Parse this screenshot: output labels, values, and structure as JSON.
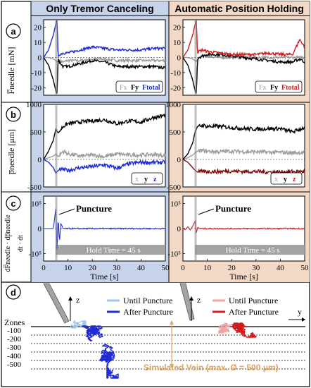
{
  "colors": {
    "left_bg": "#c7d3ea",
    "right_bg": "#f3d9c5",
    "blue": "#1f2bd6",
    "red": "#d11d1d",
    "dark_red": "#7a0d0d",
    "gray": "#9c9c9c",
    "light_blue": "#9fc6ee",
    "light_red": "#f0a6a6",
    "hold_bar": "#a3a3a3",
    "vein_label": "#e0a461",
    "puncture_line": "#8a8a8a"
  },
  "headers": {
    "left": "Only Tremor Canceling",
    "right": "Automatic Position Holding"
  },
  "panel_labels": [
    "a",
    "b",
    "c",
    "d"
  ],
  "panel_a": {
    "ylabel": "F̅needle [mN]",
    "yticks": [
      "20",
      "10",
      "0",
      "-10",
      "-20"
    ],
    "legend": [
      "Fx",
      "Fy",
      "Ftotal"
    ]
  },
  "panel_b": {
    "ylabel": "p̅needle [μm]",
    "yticks": [
      "1000",
      "500",
      "0",
      "-500"
    ],
    "legend": [
      "x",
      "y",
      "z"
    ]
  },
  "panel_c": {
    "yticks": [
      "10⁵",
      "0",
      "-10⁵"
    ],
    "ylabel_top": "dF̅needle · dp̅needle",
    "ylabel_bottom": "dt · dt",
    "puncture": "Puncture",
    "hold_time": "Hold Time = 45 s",
    "xticks": [
      "0",
      "10",
      "20",
      "30",
      "40",
      "50"
    ],
    "xlabel": "Time  [s]"
  },
  "panel_d": {
    "zones_label": "Zones",
    "zone_ticks": [
      "-100",
      "-200",
      "-300",
      "-400",
      "-500"
    ],
    "z_axis": "z",
    "y_axis": "y",
    "left_legend": [
      "Until Puncture",
      "After Puncture"
    ],
    "right_legend": [
      "Until Puncture",
      "After Puncture"
    ],
    "vein_label": "Simulated Vein (max. Ø = 500 μm)"
  },
  "chart_data": [
    {
      "type": "line",
      "title": "Only Tremor Canceling",
      "xlabel": "Time [s]",
      "ylabel": "Fneedle [mN]",
      "xlim": [
        0,
        50
      ],
      "ylim": [
        -25,
        25
      ],
      "x": [
        0,
        2,
        4,
        5,
        5.5,
        6,
        6.5,
        8,
        10,
        15,
        20,
        25,
        30,
        35,
        40,
        45,
        50
      ],
      "series": [
        {
          "name": "Fx",
          "values": [
            0,
            0,
            -1,
            -2,
            -3,
            -2,
            -2,
            -3,
            -2,
            -2,
            -1,
            -1,
            -2,
            -2,
            -2,
            -2,
            -2
          ]
        },
        {
          "name": "Fy",
          "values": [
            0,
            -5,
            -15,
            -22,
            -24,
            0,
            -3,
            -6,
            -6,
            -4,
            -2,
            -3,
            -6,
            -6,
            -6,
            -6,
            -7
          ]
        },
        {
          "name": "Ftotal",
          "values": [
            0,
            5,
            15,
            22,
            25,
            0,
            2,
            3,
            3,
            5,
            7,
            6,
            5,
            5,
            5,
            6,
            6
          ]
        }
      ]
    },
    {
      "type": "line",
      "title": "Automatic Position Holding",
      "xlabel": "Time [s]",
      "ylabel": "Fneedle [mN]",
      "xlim": [
        0,
        50
      ],
      "ylim": [
        -25,
        25
      ],
      "x": [
        0,
        2,
        4,
        5,
        5.5,
        6,
        6.5,
        8,
        10,
        15,
        20,
        25,
        30,
        35,
        40,
        45,
        48,
        50
      ],
      "series": [
        {
          "name": "Fx",
          "values": [
            0,
            0,
            -1,
            -2,
            -3,
            -1,
            0,
            1,
            1,
            0,
            0,
            0,
            0,
            0,
            0,
            0,
            0,
            0
          ]
        },
        {
          "name": "Fy",
          "values": [
            0,
            -5,
            -15,
            -22,
            -24,
            -2,
            0,
            1,
            2,
            2,
            1,
            0,
            -1,
            -2,
            -3,
            -3,
            -1,
            -3
          ]
        },
        {
          "name": "Ftotal",
          "values": [
            0,
            5,
            15,
            22,
            25,
            2,
            4,
            5,
            4,
            3,
            2,
            2,
            2,
            3,
            2,
            2,
            12,
            7
          ]
        }
      ]
    },
    {
      "type": "line",
      "title": "Only Tremor Canceling",
      "xlabel": "Time [s]",
      "ylabel": "pneedle [μm]",
      "xlim": [
        0,
        50
      ],
      "ylim": [
        -500,
        1000
      ],
      "x": [
        0,
        2,
        4,
        5,
        6,
        8,
        10,
        15,
        20,
        25,
        30,
        35,
        40,
        45,
        50
      ],
      "series": [
        {
          "name": "x",
          "values": [
            0,
            30,
            60,
            100,
            50,
            150,
            100,
            60,
            80,
            50,
            100,
            80,
            80,
            90,
            70
          ]
        },
        {
          "name": "y",
          "values": [
            0,
            150,
            350,
            550,
            480,
            600,
            650,
            680,
            700,
            720,
            650,
            700,
            680,
            760,
            800
          ]
        },
        {
          "name": "z",
          "values": [
            0,
            -50,
            -150,
            -250,
            -200,
            -180,
            -200,
            -150,
            -130,
            -100,
            -160,
            -80,
            -50,
            -60,
            -50
          ]
        }
      ]
    },
    {
      "type": "line",
      "title": "Automatic Position Holding",
      "xlabel": "Time [s]",
      "ylabel": "pneedle [μm]",
      "xlim": [
        0,
        50
      ],
      "ylim": [
        -500,
        1000
      ],
      "x": [
        0,
        2,
        4,
        5,
        6,
        8,
        10,
        15,
        20,
        25,
        30,
        35,
        40,
        45,
        50
      ],
      "series": [
        {
          "name": "x",
          "values": [
            0,
            30,
            80,
            120,
            150,
            160,
            150,
            140,
            150,
            140,
            140,
            130,
            130,
            120,
            130
          ]
        },
        {
          "name": "y",
          "values": [
            0,
            100,
            300,
            500,
            600,
            620,
            600,
            600,
            580,
            560,
            550,
            560,
            560,
            500,
            580
          ]
        },
        {
          "name": "z",
          "values": [
            0,
            -50,
            -150,
            -200,
            -230,
            -220,
            -220,
            -220,
            -210,
            -220,
            -220,
            -230,
            -230,
            -220,
            -220
          ]
        }
      ]
    },
    {
      "type": "line",
      "title": "Only Tremor Canceling",
      "xlabel": "Time [s]",
      "xlim": [
        0,
        50
      ],
      "annotations": [
        "Puncture",
        "Hold Time = 45 s"
      ],
      "x": [
        0,
        4,
        5,
        5.5,
        6,
        6.5,
        7,
        8,
        10,
        20,
        30,
        40,
        50
      ],
      "series": [
        {
          "values": [
            0,
            0,
            80000,
            -100000,
            50000,
            -60000,
            20000,
            0,
            0,
            0,
            0,
            0,
            0
          ]
        }
      ]
    },
    {
      "type": "line",
      "title": "Automatic Position Holding",
      "xlabel": "Time [s]",
      "xlim": [
        0,
        50
      ],
      "annotations": [
        "Puncture",
        "Hold Time = 45 s"
      ],
      "x": [
        0,
        1,
        2,
        3,
        4,
        5,
        5.5,
        6,
        7,
        10,
        20,
        30,
        40,
        50
      ],
      "series": [
        {
          "values": [
            0,
            -5000,
            8000,
            -6000,
            10000,
            30000,
            -20000,
            5000,
            0,
            0,
            0,
            0,
            0,
            0
          ]
        }
      ]
    }
  ]
}
